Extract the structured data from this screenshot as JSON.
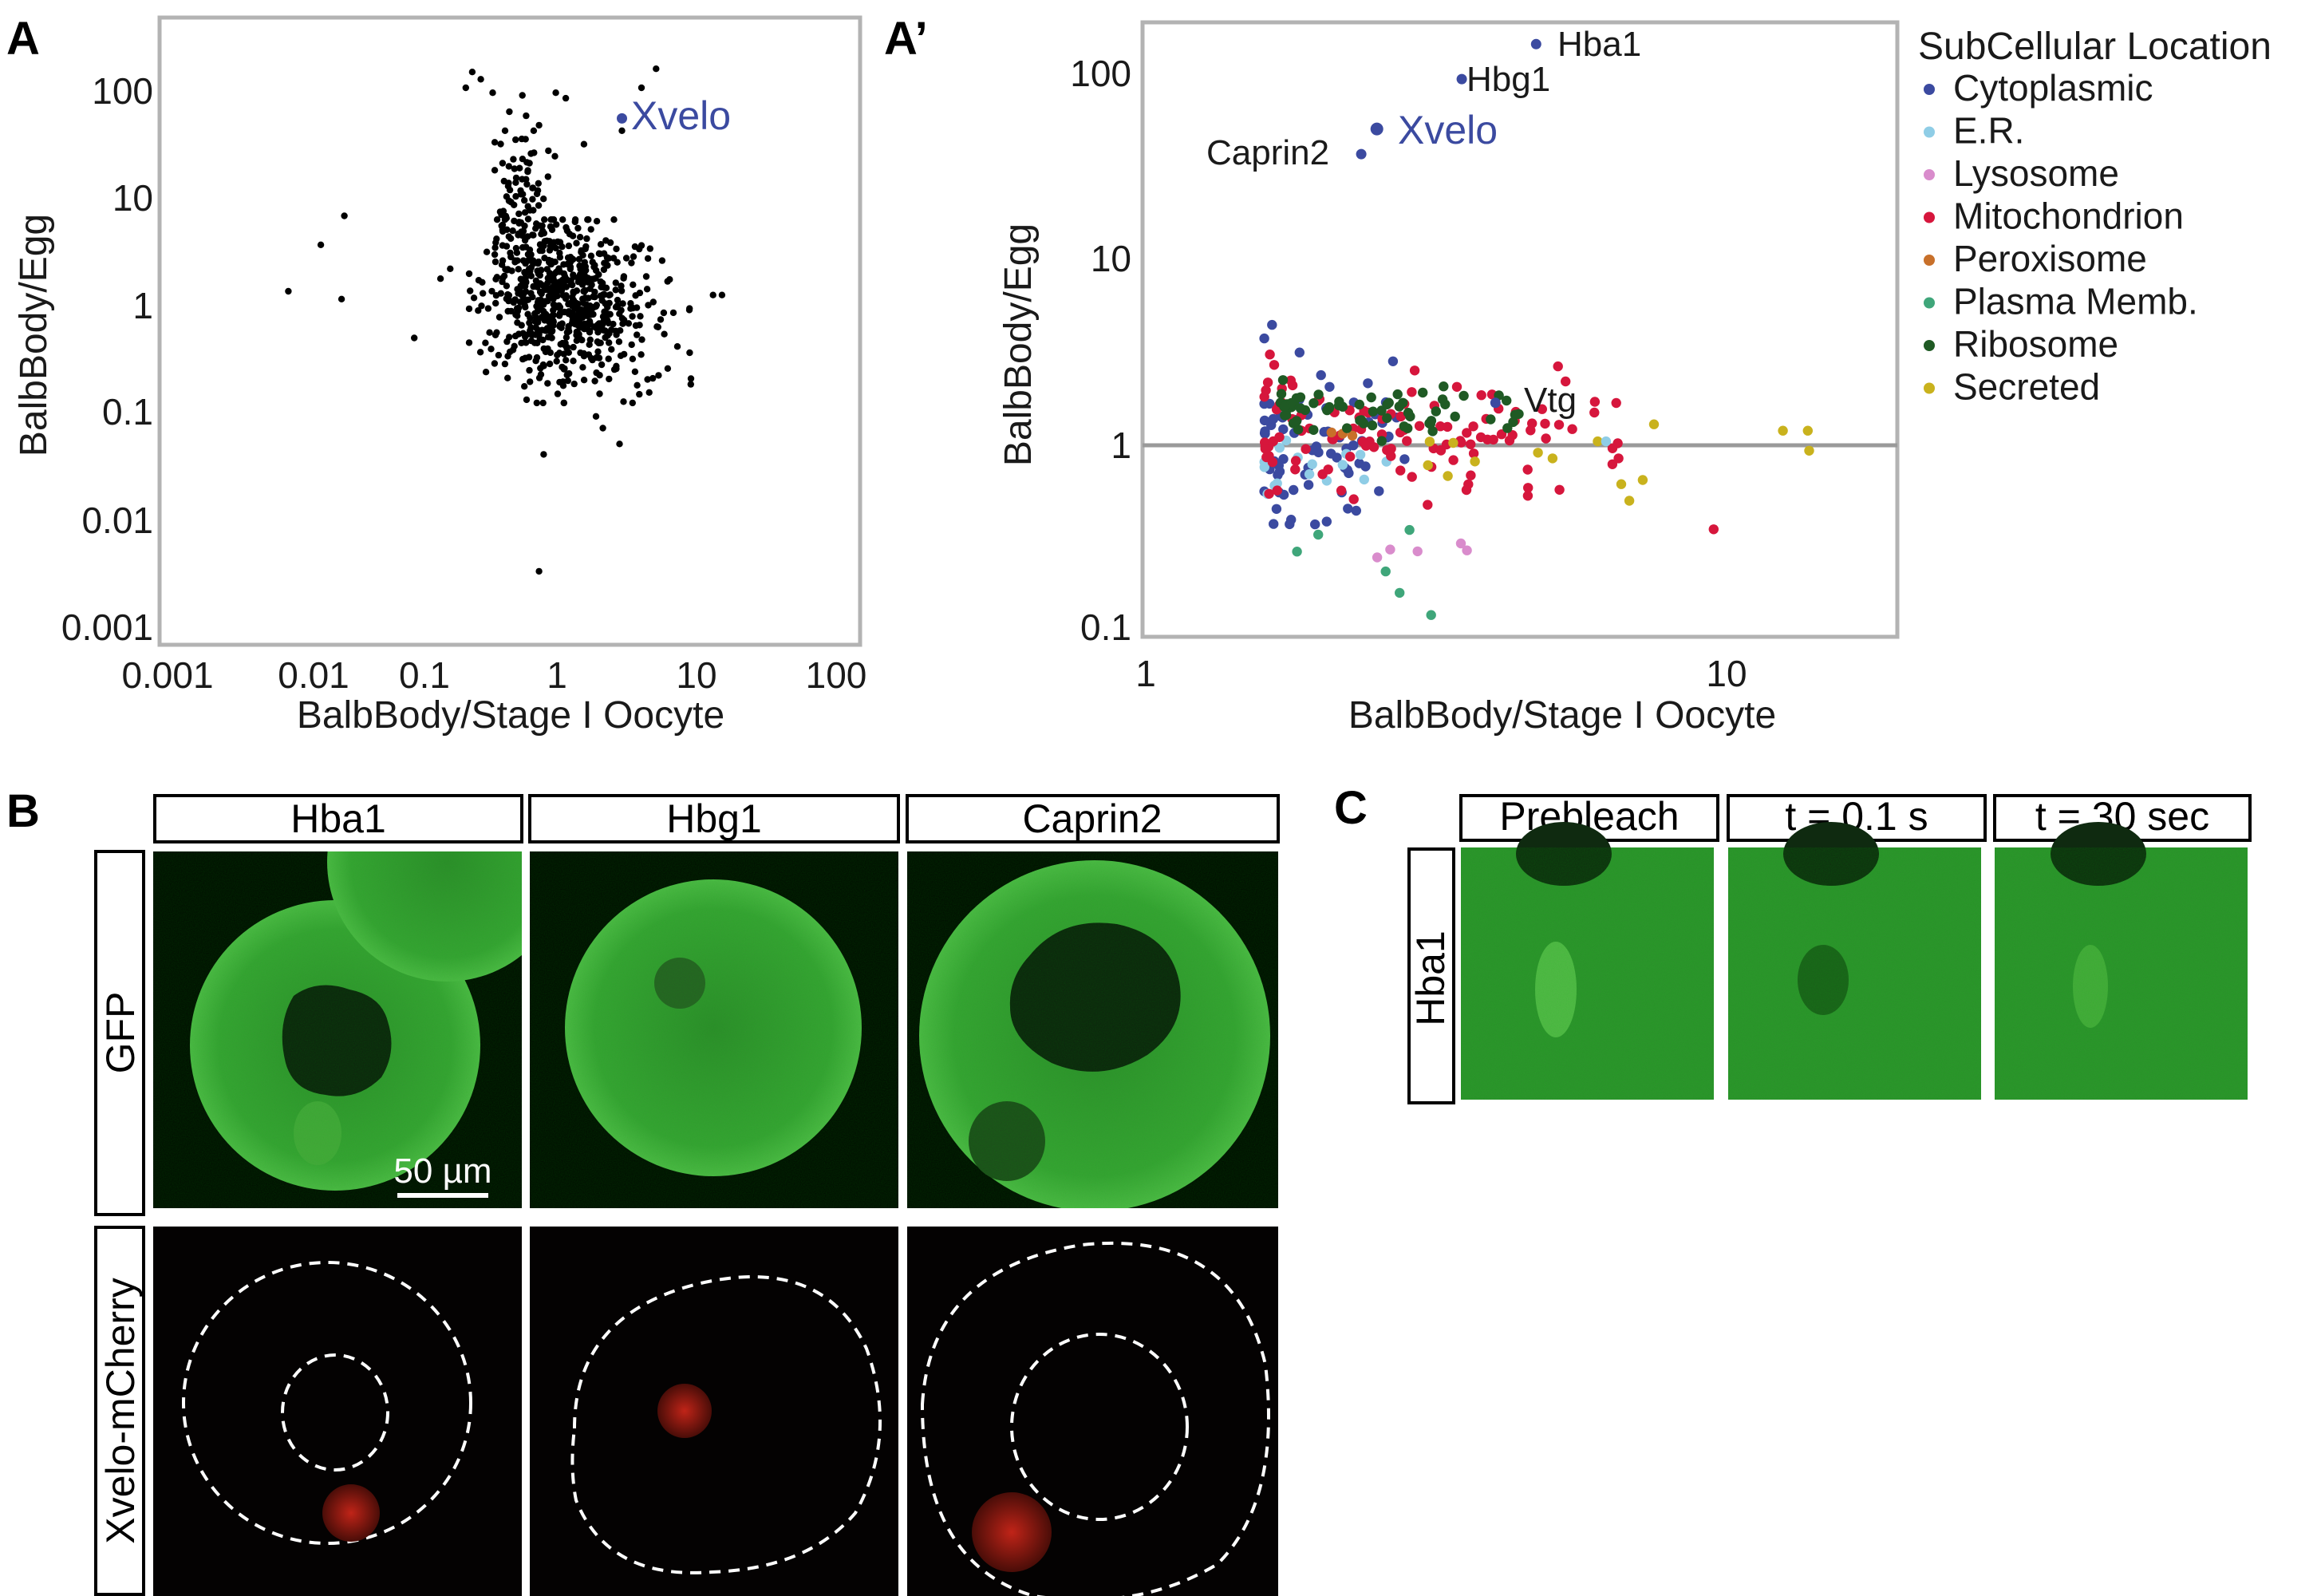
{
  "panels": {
    "A": {
      "letter": "A",
      "chart_data": {
        "type": "scatter",
        "xlabel": "BalbBody/Stage I Oocyte",
        "ylabel": "BalbBody/Egg",
        "x_scale": "log",
        "y_scale": "log",
        "xlim": [
          0.001,
          100
        ],
        "ylim": [
          0.001,
          300
        ],
        "x_ticks": [
          "0.001",
          "0.01",
          "0.1",
          "1",
          "10",
          "100"
        ],
        "y_ticks": [
          "0.001",
          "0.01",
          "0.1",
          "1",
          "10",
          "100"
        ],
        "annotation": {
          "label": "Xvelo",
          "x": 2.5,
          "y": 52,
          "color": "#3b4aa0"
        },
        "point_color": "#000000",
        "outlier_points": [
          [
            0.008,
            1.3
          ],
          [
            0.014,
            3.5
          ],
          [
            0.02,
            1.1
          ],
          [
            0.021,
            6.5
          ],
          [
            0.07,
            0.48
          ],
          [
            0.11,
            1.7
          ],
          [
            0.13,
            2.1
          ],
          [
            0.17,
            100
          ],
          [
            0.19,
            140
          ],
          [
            0.22,
            120
          ],
          [
            0.27,
            90
          ],
          [
            0.32,
            20
          ],
          [
            0.36,
            60
          ],
          [
            0.45,
            85
          ],
          [
            0.48,
            55
          ],
          [
            0.55,
            25
          ],
          [
            0.6,
            45
          ],
          [
            0.62,
            0.22
          ],
          [
            0.65,
            0.04
          ],
          [
            0.7,
            15
          ],
          [
            0.8,
            90
          ],
          [
            0.95,
            80
          ],
          [
            1.1,
            0.18
          ],
          [
            1.3,
            30
          ],
          [
            1.6,
            0.09
          ],
          [
            1.8,
            0.07
          ],
          [
            2.0,
            0.2
          ],
          [
            2.4,
            0.05
          ],
          [
            3.0,
            0.12
          ],
          [
            3.5,
            100
          ],
          [
            4.5,
            150
          ],
          [
            5.5,
            0.25
          ],
          [
            6.5,
            0.4
          ],
          [
            8.0,
            0.9
          ],
          [
            12,
            1.2
          ],
          [
            14,
            1.2
          ],
          [
            2.5,
            40
          ],
          [
            0.6,
            0.0033
          ],
          [
            0.4,
            0.5
          ],
          [
            5.0,
            2.5
          ],
          [
            4.0,
            0.15
          ],
          [
            0.25,
            0.9
          ]
        ],
        "dense_cluster": {
          "count": 640,
          "x_center": 0.95,
          "y_center": 1.0,
          "log_sx": 0.3,
          "log_sy": 0.38,
          "corr": -0.15,
          "x_extent": [
            0.18,
            10
          ],
          "y_extent": [
            0.12,
            6
          ]
        },
        "upper_arm": {
          "count": 90,
          "x_center": 0.45,
          "y_center": 8,
          "log_sx": 0.12,
          "log_sy": 0.35,
          "x_extent": [
            0.28,
            0.9
          ],
          "y_extent": [
            2.5,
            40
          ]
        }
      }
    },
    "A_prime": {
      "letter": "A’",
      "chart_data": {
        "type": "scatter",
        "xlabel": "BalbBody/Stage I Oocyte",
        "ylabel": "BalbBody/Egg",
        "x_scale": "log",
        "y_scale": "log",
        "xlim": [
          1,
          20
        ],
        "ylim": [
          0.1,
          250
        ],
        "x_ticks": [
          "1",
          "10"
        ],
        "y_ticks": [
          "0.1",
          "1",
          "10",
          "100"
        ],
        "reference_line_y": 1,
        "legend": {
          "title": "SubCellular Location",
          "placement": "right",
          "entries": [
            {
              "name": "Cytoplasmic",
              "color": "#3b4aa0"
            },
            {
              "name": "E.R.",
              "color": "#8fcde6"
            },
            {
              "name": "Lysosome",
              "color": "#d98ccc"
            },
            {
              "name": "Mitochondrion",
              "color": "#d6163c"
            },
            {
              "name": "Peroxisome",
              "color": "#c8702a"
            },
            {
              "name": "Plasma Memb.",
              "color": "#3fa67a"
            },
            {
              "name": "Ribosome",
              "color": "#1f5a24"
            },
            {
              "name": "Secreted",
              "color": "#c9b21d"
            }
          ]
        },
        "labeled_points": [
          {
            "label": "Hba1",
            "x": 4.7,
            "y": 150,
            "category": "Cytoplasmic"
          },
          {
            "label": "Hbg1",
            "x": 3.5,
            "y": 97,
            "category": "Cytoplasmic"
          },
          {
            "label": "Xvelo",
            "x": 2.5,
            "y": 52,
            "category": "Cytoplasmic"
          },
          {
            "label": "Caprin2",
            "x": 2.35,
            "y": 38,
            "category": "Cytoplasmic"
          },
          {
            "label": "Vtg",
            "x": 4.0,
            "y": 1.7,
            "category": "Cytoplasmic"
          }
        ],
        "series": [
          {
            "category": "Cytoplasmic",
            "count": 70,
            "x_range": [
              1.6,
              2.8
            ],
            "y_range": [
              0.25,
              4.5
            ]
          },
          {
            "category": "E.R.",
            "count": 16,
            "x_range": [
              1.6,
              2.6
            ],
            "y_range": [
              0.45,
              1.2
            ]
          },
          {
            "category": "Lysosome",
            "count": 5,
            "x_range": [
              2.5,
              3.6
            ],
            "y_range": [
              0.24,
              0.3
            ]
          },
          {
            "category": "Mitochondrion",
            "count": 120,
            "x_range": [
              1.6,
              6.8
            ],
            "y_range": [
              0.35,
              3.8
            ]
          },
          {
            "category": "Peroxisome",
            "count": 3,
            "x_range": [
              2.0,
              2.8
            ],
            "y_range": [
              0.9,
              1.3
            ]
          },
          {
            "category": "Plasma Memb.",
            "count": 5,
            "x_range": [
              1.8,
              3.2
            ],
            "y_range": [
              0.12,
              0.6
            ]
          },
          {
            "category": "Ribosome",
            "count": 65,
            "x_range": [
              1.7,
              4.4
            ],
            "y_range": [
              1.0,
              2.4
            ]
          },
          {
            "category": "Secreted",
            "count": 10,
            "x_range": [
              2.8,
              14
            ],
            "y_range": [
              0.5,
              1.3
            ]
          }
        ],
        "fixed_points": [
          {
            "category": "Mitochondrion",
            "x": 9.5,
            "y": 0.35
          },
          {
            "category": "Plasma Memb.",
            "x": 3.1,
            "y": 0.12
          },
          {
            "category": "Secreted",
            "x": 12.5,
            "y": 1.2
          },
          {
            "category": "Secreted",
            "x": 13.8,
            "y": 1.2
          },
          {
            "category": "Secreted",
            "x": 7.5,
            "y": 1.3
          },
          {
            "category": "Secreted",
            "x": 6.0,
            "y": 1.05
          },
          {
            "category": "Secreted",
            "x": 6.8,
            "y": 0.5
          },
          {
            "category": "E.R.",
            "x": 6.2,
            "y": 1.05
          },
          {
            "category": "Cytoplasmic",
            "x": 1.65,
            "y": 4.5
          },
          {
            "category": "Cytoplasmic",
            "x": 1.6,
            "y": 3.8
          }
        ]
      }
    },
    "B": {
      "letter": "B",
      "columns": [
        "Hba1",
        "Hbg1",
        "Caprin2"
      ],
      "rows": [
        "GFP",
        "Xvelo-mCherry"
      ],
      "scale_bar": "50 µm"
    },
    "C": {
      "letter": "C",
      "columns": [
        "Prebleach",
        "t = 0.1 s",
        "t =  30 sec"
      ],
      "row": "Hba1"
    }
  }
}
